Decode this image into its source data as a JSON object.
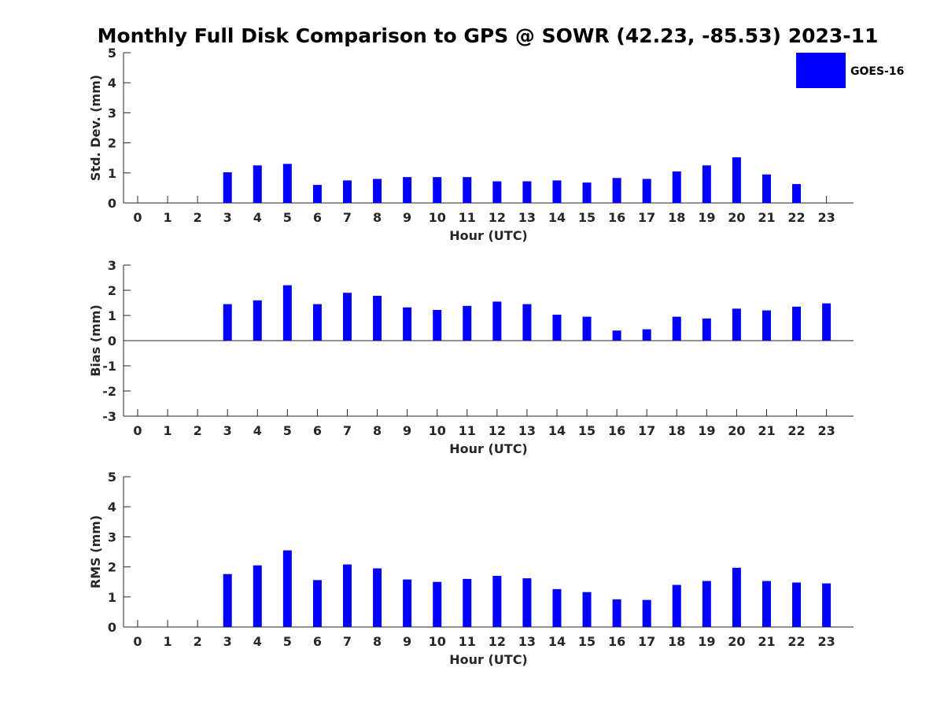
{
  "chart_data": {
    "title": "Monthly Full Disk Comparison to GPS @ SOWR (42.23, -85.53) 2023-11",
    "type": "bar",
    "categories": [
      "0",
      "1",
      "2",
      "3",
      "4",
      "5",
      "6",
      "7",
      "8",
      "9",
      "10",
      "11",
      "12",
      "13",
      "14",
      "15",
      "16",
      "17",
      "18",
      "19",
      "20",
      "21",
      "22",
      "23"
    ],
    "xlabel": "Hour (UTC)",
    "legend": {
      "label": "GOES-16",
      "placement": "top-right",
      "color": "#0000ff"
    },
    "panels": [
      {
        "id": "std",
        "ylabel": "Std. Dev. (mm)",
        "ylim": [
          0,
          5
        ],
        "yticks": [
          "0",
          "1",
          "2",
          "3",
          "4",
          "5"
        ],
        "series": [
          {
            "name": "GOES-16",
            "values": [
              null,
              null,
              null,
              1.02,
              1.25,
              1.3,
              0.6,
              0.75,
              0.8,
              0.86,
              0.86,
              0.86,
              0.72,
              0.72,
              0.75,
              0.68,
              0.83,
              0.8,
              1.05,
              1.25,
              1.52,
              0.95,
              0.63,
              null
            ]
          }
        ]
      },
      {
        "id": "bias",
        "ylabel": "Bias (mm)",
        "ylim": [
          -3,
          3
        ],
        "yticks": [
          "-3",
          "-2",
          "-1",
          "0",
          "1",
          "2",
          "3"
        ],
        "series": [
          {
            "name": "GOES-16",
            "values": [
              null,
              null,
              null,
              1.45,
              1.6,
              2.2,
              1.45,
              1.9,
              1.78,
              1.32,
              1.22,
              1.38,
              1.55,
              1.45,
              1.03,
              0.95,
              0.4,
              0.45,
              0.95,
              0.88,
              1.27,
              1.2,
              1.35,
              1.48
            ]
          }
        ]
      },
      {
        "id": "rms",
        "ylabel": "RMS (mm)",
        "ylim": [
          0,
          5
        ],
        "yticks": [
          "0",
          "1",
          "2",
          "3",
          "4",
          "5"
        ],
        "series": [
          {
            "name": "GOES-16",
            "values": [
              null,
              null,
              null,
              1.76,
              2.05,
              2.55,
              1.56,
              2.08,
              1.95,
              1.58,
              1.5,
              1.6,
              1.7,
              1.62,
              1.26,
              1.16,
              0.92,
              0.9,
              1.4,
              1.53,
              1.97,
              1.53,
              1.48,
              1.45
            ]
          }
        ]
      }
    ]
  }
}
